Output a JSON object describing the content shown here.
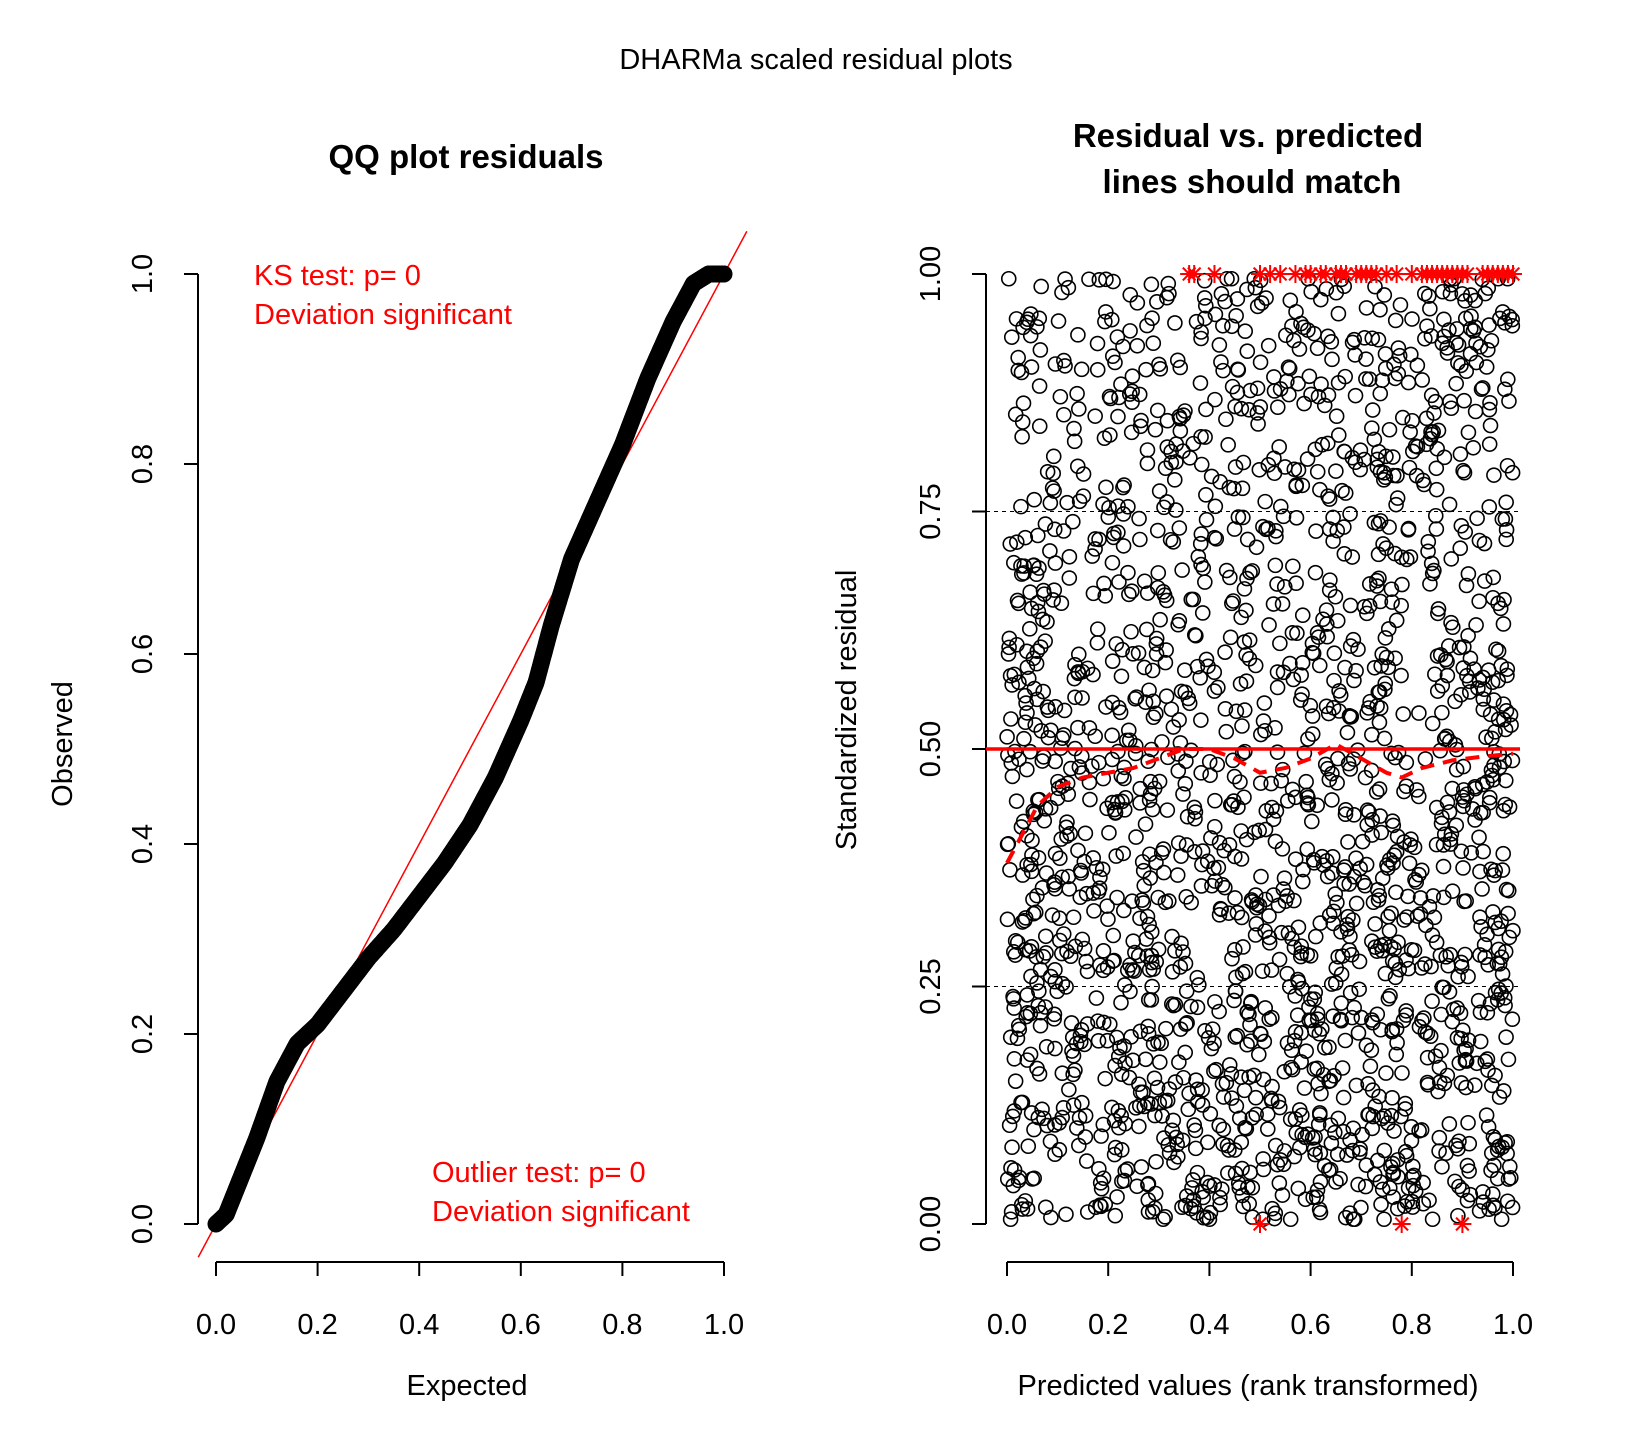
{
  "figure_title": "DHARMa scaled residual plots",
  "colors": {
    "ink": "#000000",
    "accent": "#ff0000"
  },
  "chart_data": [
    {
      "type": "scatter",
      "title": "QQ plot residuals",
      "xlabel": "Expected",
      "ylabel": "Observed",
      "xlim": [
        0,
        1
      ],
      "ylim": [
        0,
        1
      ],
      "x_ticks": [
        "0.0",
        "0.2",
        "0.4",
        "0.6",
        "0.8",
        "1.0"
      ],
      "y_ticks": [
        "0.0",
        "0.2",
        "0.4",
        "0.6",
        "0.8",
        "1.0"
      ],
      "reference_line": {
        "intercept": 0,
        "slope": 1,
        "color": "#ff0000"
      },
      "series": [
        {
          "points": [
            [
              0,
              0
            ],
            [
              0.02,
              0.01
            ],
            [
              0.05,
              0.05
            ],
            [
              0.08,
              0.09
            ],
            [
              0.12,
              0.15
            ],
            [
              0.16,
              0.19
            ],
            [
              0.2,
              0.21
            ],
            [
              0.25,
              0.245
            ],
            [
              0.3,
              0.28
            ],
            [
              0.35,
              0.31
            ],
            [
              0.4,
              0.345
            ],
            [
              0.45,
              0.38
            ],
            [
              0.5,
              0.42
            ],
            [
              0.55,
              0.47
            ],
            [
              0.6,
              0.53
            ],
            [
              0.63,
              0.57
            ],
            [
              0.66,
              0.63
            ],
            [
              0.7,
              0.7
            ],
            [
              0.75,
              0.76
            ],
            [
              0.8,
              0.82
            ],
            [
              0.85,
              0.89
            ],
            [
              0.9,
              0.95
            ],
            [
              0.94,
              0.99
            ],
            [
              0.97,
              1.0
            ],
            [
              1.0,
              1.0
            ]
          ]
        }
      ],
      "annotations": [
        {
          "lines": [
            "KS test: p= 0",
            "Deviation  significant"
          ],
          "position": "top-left",
          "color": "#ff0000"
        },
        {
          "lines": [
            "Outlier test: p= 0",
            "Deviation  significant"
          ],
          "position": "bottom-right",
          "color": "#ff0000"
        }
      ]
    },
    {
      "type": "scatter",
      "title": "Residual vs. predicted\nlines should match",
      "title_lines": [
        "Residual vs. predicted",
        "lines should match"
      ],
      "xlabel": "Predicted values (rank transformed)",
      "ylabel": "Standardized residual",
      "xlim": [
        0,
        1
      ],
      "ylim": [
        0,
        1
      ],
      "x_ticks": [
        "0.0",
        "0.2",
        "0.4",
        "0.6",
        "0.8",
        "1.0"
      ],
      "y_ticks": [
        "0.00",
        "0.25",
        "0.50",
        "0.75",
        "1.00"
      ],
      "grid": "dashed horizontal at 0.25 and 0.75",
      "reference_line": {
        "y": 0.5,
        "color": "#ff0000",
        "style": "solid"
      },
      "point_count": 2000,
      "point_distribution": "uniform in x; y denser below 0.5 (0.0-0.5) than above, black open circles",
      "smooth_curve": {
        "style": "dashed",
        "color": "#ff0000",
        "points": [
          [
            0.0,
            0.38
          ],
          [
            0.03,
            0.41
          ],
          [
            0.06,
            0.44
          ],
          [
            0.1,
            0.46
          ],
          [
            0.15,
            0.47
          ],
          [
            0.2,
            0.475
          ],
          [
            0.25,
            0.48
          ],
          [
            0.3,
            0.49
          ],
          [
            0.35,
            0.5
          ],
          [
            0.4,
            0.5
          ],
          [
            0.45,
            0.49
          ],
          [
            0.5,
            0.475
          ],
          [
            0.55,
            0.48
          ],
          [
            0.6,
            0.49
          ],
          [
            0.65,
            0.505
          ],
          [
            0.7,
            0.49
          ],
          [
            0.75,
            0.475
          ],
          [
            0.78,
            0.47
          ],
          [
            0.82,
            0.48
          ],
          [
            0.88,
            0.488
          ],
          [
            0.94,
            0.492
          ],
          [
            1.0,
            0.495
          ]
        ]
      },
      "outliers": {
        "marker": "asterisk",
        "color": "#ff0000",
        "top_y": 1.0,
        "top_x": [
          0.36,
          0.37,
          0.41,
          0.5,
          0.52,
          0.54,
          0.57,
          0.59,
          0.6,
          0.62,
          0.63,
          0.65,
          0.66,
          0.67,
          0.69,
          0.7,
          0.71,
          0.72,
          0.73,
          0.75,
          0.77,
          0.8,
          0.82,
          0.83,
          0.84,
          0.85,
          0.86,
          0.87,
          0.88,
          0.89,
          0.9,
          0.91,
          0.94,
          0.95,
          0.96,
          0.97,
          0.98,
          0.99,
          1.0
        ],
        "bottom_y": 0.0,
        "bottom_x": [
          0.5,
          0.78,
          0.9
        ]
      }
    }
  ]
}
